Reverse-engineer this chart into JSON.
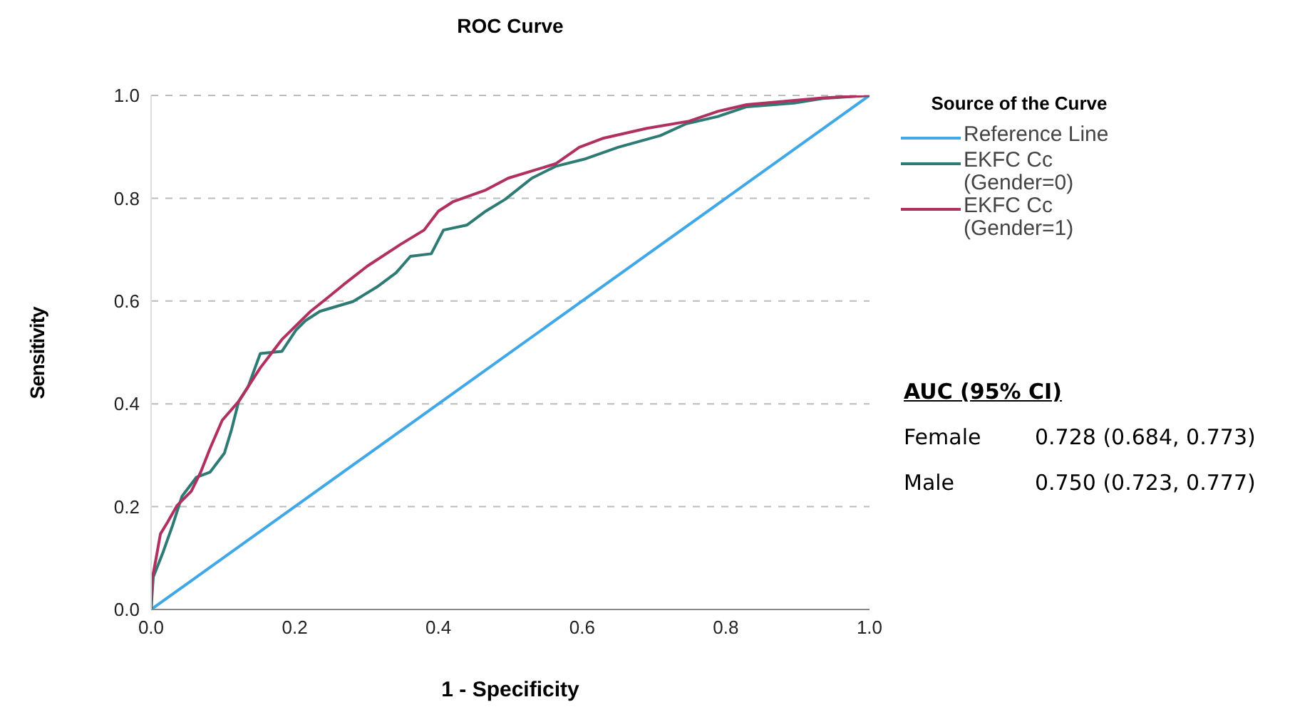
{
  "chart_data": {
    "type": "line",
    "title": "ROC Curve",
    "xlabel": "1 - Specificity",
    "ylabel": "Sensitivity",
    "legend_title": "Source of the Curve",
    "xlim": [
      0,
      1
    ],
    "ylim": [
      0,
      1
    ],
    "xticks": [
      {
        "value": 0,
        "label": "0.0"
      },
      {
        "value": 0.2,
        "label": "0.2"
      },
      {
        "value": 0.4,
        "label": "0.4"
      },
      {
        "value": 0.6,
        "label": "0.6"
      },
      {
        "value": 0.8,
        "label": "0.8"
      },
      {
        "value": 1,
        "label": "1.0"
      }
    ],
    "yticks": [
      {
        "value": 0,
        "label": "0.0"
      },
      {
        "value": 0.2,
        "label": "0.2"
      },
      {
        "value": 0.4,
        "label": "0.4"
      },
      {
        "value": 0.6,
        "label": "0.6"
      },
      {
        "value": 0.8,
        "label": "0.8"
      },
      {
        "value": 1,
        "label": "1.0"
      }
    ],
    "grid": "y",
    "legend": "right",
    "marker": "none",
    "line_style": "solid",
    "series": [
      {
        "name": "Reference Line",
        "color": "#41a8e8",
        "x": [
          0,
          1
        ],
        "values": [
          0,
          1
        ]
      },
      {
        "name": "EKFC Cc (Gender=0)",
        "color": "#2e7a74",
        "x": [
          0,
          0.003,
          0.016,
          0.03,
          0.043,
          0.063,
          0.082,
          0.102,
          0.112,
          0.122,
          0.135,
          0.152,
          0.182,
          0.202,
          0.215,
          0.235,
          0.281,
          0.314,
          0.341,
          0.361,
          0.39,
          0.407,
          0.44,
          0.466,
          0.493,
          0.53,
          0.563,
          0.603,
          0.65,
          0.709,
          0.745,
          0.789,
          0.829,
          0.895,
          0.935,
          1
        ],
        "values": [
          0,
          0.063,
          0.109,
          0.164,
          0.22,
          0.257,
          0.267,
          0.304,
          0.35,
          0.405,
          0.433,
          0.498,
          0.502,
          0.544,
          0.562,
          0.58,
          0.599,
          0.627,
          0.655,
          0.687,
          0.692,
          0.738,
          0.748,
          0.775,
          0.798,
          0.839,
          0.862,
          0.876,
          0.899,
          0.922,
          0.945,
          0.959,
          0.978,
          0.985,
          0.994,
          1
        ]
      },
      {
        "name": "EKFC Cc (Gender=1)",
        "color": "#b0305f",
        "x": [
          0,
          0.001,
          0.007,
          0.013,
          0.023,
          0.036,
          0.056,
          0.069,
          0.082,
          0.099,
          0.122,
          0.152,
          0.182,
          0.222,
          0.248,
          0.268,
          0.301,
          0.347,
          0.38,
          0.4,
          0.42,
          0.466,
          0.497,
          0.563,
          0.596,
          0.63,
          0.69,
          0.749,
          0.789,
          0.829,
          0.935,
          1
        ],
        "values": [
          0,
          0.055,
          0.1,
          0.147,
          0.17,
          0.202,
          0.23,
          0.267,
          0.313,
          0.368,
          0.405,
          0.47,
          0.525,
          0.58,
          0.609,
          0.632,
          0.668,
          0.71,
          0.738,
          0.775,
          0.793,
          0.816,
          0.839,
          0.867,
          0.899,
          0.917,
          0.936,
          0.95,
          0.969,
          0.982,
          0.995,
          1
        ]
      }
    ],
    "annotations": [
      "AUC (95% CI)",
      "Female",
      "0.728 (0.684, 0.773)",
      "Male",
      "0.750 (0.723, 0.777)"
    ]
  }
}
